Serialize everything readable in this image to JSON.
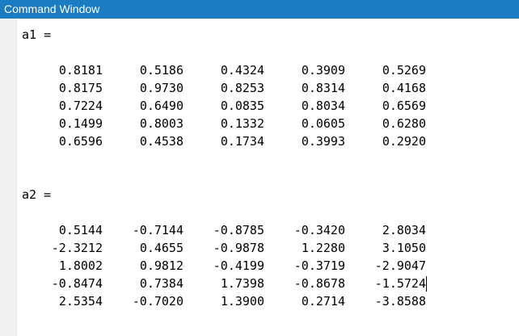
{
  "window": {
    "title": "Command Window"
  },
  "matrices": [
    {
      "header": "a1 =",
      "rows": [
        [
          "0.8181",
          "0.5186",
          "0.4324",
          "0.3909",
          "0.5269"
        ],
        [
          "0.8175",
          "0.9730",
          "0.8253",
          "0.8314",
          "0.4168"
        ],
        [
          "0.7224",
          "0.6490",
          "0.0835",
          "0.8034",
          "0.6569"
        ],
        [
          "0.1499",
          "0.8003",
          "0.1332",
          "0.0605",
          "0.6280"
        ],
        [
          "0.6596",
          "0.4538",
          "0.1734",
          "0.3993",
          "0.2920"
        ]
      ]
    },
    {
      "header": "a2 =",
      "rows": [
        [
          "0.5144",
          "-0.7144",
          "-0.8785",
          "-0.3420",
          "2.8034"
        ],
        [
          "-2.3212",
          "0.4655",
          "-0.9878",
          "1.2280",
          "3.1050"
        ],
        [
          "1.8002",
          "0.9812",
          "-0.4199",
          "-0.3719",
          "-2.9047"
        ],
        [
          "-0.8474",
          "0.7384",
          "1.7398",
          "-0.8678",
          "-1.5724"
        ],
        [
          "2.5354",
          "-0.7020",
          "1.3900",
          "0.2714",
          "-3.8588"
        ]
      ]
    }
  ],
  "colors": {
    "titlebar_bg": "#1b7cc1",
    "titlebar_text": "#ffffff",
    "gutter_bg": "#f0f0f0",
    "text": "#000000"
  }
}
